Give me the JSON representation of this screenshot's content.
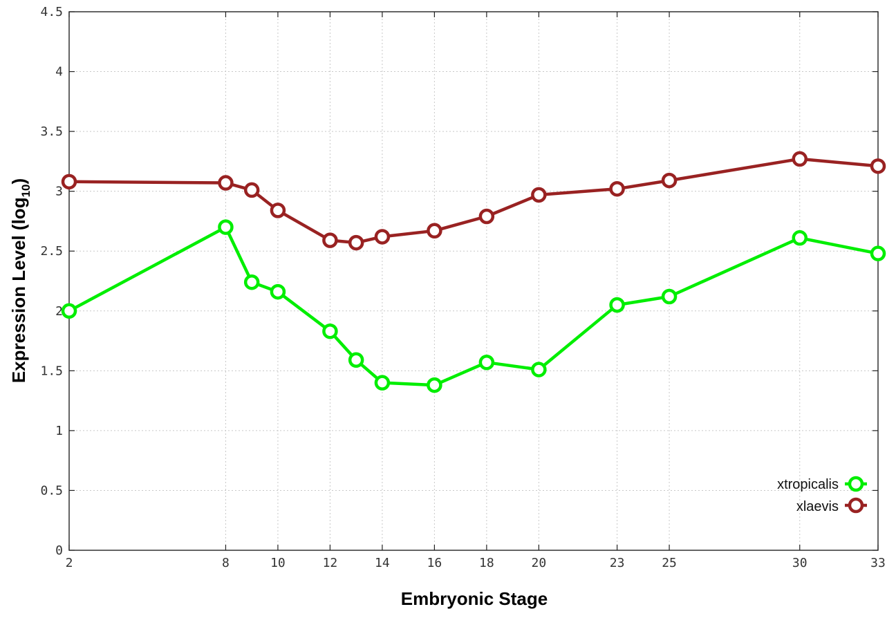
{
  "chart_data": {
    "type": "line",
    "title": "",
    "xlabel": "Embryonic Stage",
    "ylabel_main": "Expression Level (log",
    "ylabel_sub": "10",
    "ylabel_close": ")",
    "x": [
      2,
      8,
      9,
      10,
      12,
      13,
      14,
      16,
      18,
      20,
      23,
      25,
      30,
      33
    ],
    "xticks": [
      2,
      8,
      10,
      12,
      14,
      16,
      18,
      20,
      23,
      25,
      30,
      33
    ],
    "xtick_labels": [
      "2",
      "8",
      "10",
      "12",
      "14",
      "16",
      "18",
      "20",
      "23",
      "25",
      "30",
      "33"
    ],
    "xlim": [
      2,
      33
    ],
    "ylim": [
      0,
      4.5
    ],
    "yticks": [
      0,
      0.5,
      1,
      1.5,
      2,
      2.5,
      3,
      3.5,
      4,
      4.5
    ],
    "ytick_labels": [
      "0",
      "0.5",
      "1",
      "1.5",
      "2",
      "2.5",
      "3",
      "3.5",
      "4",
      "4.5"
    ],
    "grid": true,
    "legend_position": "bottom-right",
    "series": [
      {
        "name": "xtropicalis",
        "color": "#00ee00",
        "values": [
          2.0,
          2.7,
          2.24,
          2.16,
          1.83,
          1.59,
          1.4,
          1.38,
          1.57,
          1.51,
          2.05,
          2.12,
          2.61,
          2.48
        ]
      },
      {
        "name": "xlaevis",
        "color": "#992222",
        "values": [
          3.08,
          3.07,
          3.01,
          2.84,
          2.59,
          2.57,
          2.62,
          2.67,
          2.79,
          2.97,
          3.02,
          3.09,
          3.27,
          3.21
        ]
      }
    ]
  }
}
